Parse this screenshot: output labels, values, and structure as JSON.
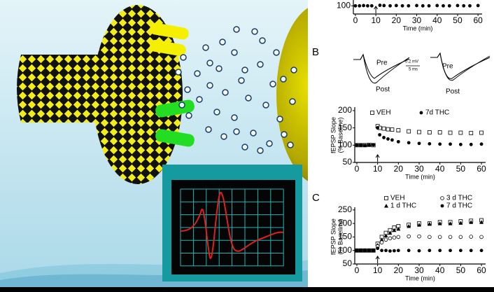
{
  "panel_labels": [
    "B",
    "C"
  ],
  "traces": [
    {
      "pre": "Pre",
      "post": "Post"
    },
    {
      "pre": "Pre",
      "post": "Post"
    }
  ],
  "scale_bar": {
    "amplitude": "0.2 mV",
    "time": "5 ms"
  },
  "chart_data": [
    {
      "type": "scatter",
      "x_label": "Time (min)",
      "x": [
        0,
        2,
        4,
        6,
        8,
        12,
        14,
        17,
        20,
        23,
        26,
        30,
        33,
        36,
        40,
        43,
        46,
        50,
        53,
        56,
        60
      ],
      "series": [
        {
          "marker": "circle-filled",
          "color": "#000000",
          "values": [
            100,
            100,
            101,
            100,
            100,
            102,
            101,
            100,
            101,
            100,
            100,
            101,
            100,
            100,
            101,
            100,
            100,
            101,
            100,
            100,
            101
          ]
        }
      ],
      "xlim": [
        -1,
        62
      ],
      "ylim": [
        70,
        250
      ],
      "xticks": [
        0,
        10,
        20,
        30,
        40,
        50,
        60
      ],
      "yticks": [
        100
      ],
      "arrow_at": 10
    },
    {
      "type": "scatter",
      "x_label": "Time (min)",
      "y_label": [
        "fEPSP Slope",
        "(% Baseline)"
      ],
      "x": [
        0,
        2,
        4,
        6,
        8,
        10,
        11,
        13,
        15,
        17,
        20,
        25,
        30,
        35,
        40,
        45,
        50,
        55,
        60
      ],
      "series": [
        {
          "name": "VEH",
          "marker": "square-open",
          "color": "#000000",
          "values": [
            100,
            100,
            100,
            101,
            100,
            155,
            150,
            148,
            146,
            145,
            143,
            140,
            138,
            137,
            137,
            136,
            136,
            135,
            136
          ]
        },
        {
          "name": "7d THC",
          "marker": "circle-filled",
          "color": "#000000",
          "values": [
            100,
            100,
            99,
            100,
            101,
            150,
            130,
            122,
            118,
            115,
            110,
            107,
            105,
            104,
            103,
            103,
            102,
            102,
            103
          ]
        }
      ],
      "xlim": [
        -1,
        62
      ],
      "ylim": [
        50,
        210
      ],
      "xticks": [
        0,
        10,
        20,
        30,
        40,
        50,
        60
      ],
      "yticks": [
        50,
        100,
        150,
        200
      ],
      "arrow_at": 10
    },
    {
      "type": "scatter",
      "x_label": "Time (min)",
      "y_label": [
        "fEPSP Slope",
        "(% Baseline)"
      ],
      "x": [
        0,
        2,
        4,
        6,
        8,
        10,
        12,
        14,
        16,
        18,
        20,
        25,
        30,
        35,
        40,
        45,
        50,
        55,
        60
      ],
      "series": [
        {
          "name": "VEH",
          "marker": "square-open",
          "color": "#000000",
          "values": [
            100,
            100,
            100,
            100,
            100,
            125,
            150,
            165,
            175,
            185,
            190,
            195,
            200,
            200,
            205,
            205,
            208,
            210,
            212
          ]
        },
        {
          "name": "1 d THC",
          "marker": "triangle",
          "color": "#000000",
          "values": [
            100,
            100,
            100,
            100,
            100,
            120,
            140,
            155,
            165,
            175,
            180,
            190,
            195,
            198,
            200,
            200,
            202,
            205,
            205
          ]
        },
        {
          "name": "3 d THC",
          "marker": "circle-open",
          "color": "#000000",
          "values": [
            100,
            100,
            100,
            100,
            100,
            115,
            130,
            140,
            145,
            148,
            150,
            152,
            152,
            150,
            150,
            150,
            150,
            151,
            150
          ]
        },
        {
          "name": "7 d THC",
          "marker": "circle-filled",
          "color": "#000000",
          "values": [
            100,
            100,
            100,
            100,
            100,
            108,
            100,
            100,
            98,
            99,
            100,
            100,
            99,
            100,
            100,
            100,
            100,
            100,
            100
          ]
        }
      ],
      "xlim": [
        -1,
        62
      ],
      "ylim": [
        50,
        260
      ],
      "xticks": [
        0,
        10,
        20,
        30,
        40,
        50,
        60
      ],
      "yticks": [
        50,
        100,
        150,
        200,
        250
      ],
      "arrow_at": 10
    }
  ]
}
